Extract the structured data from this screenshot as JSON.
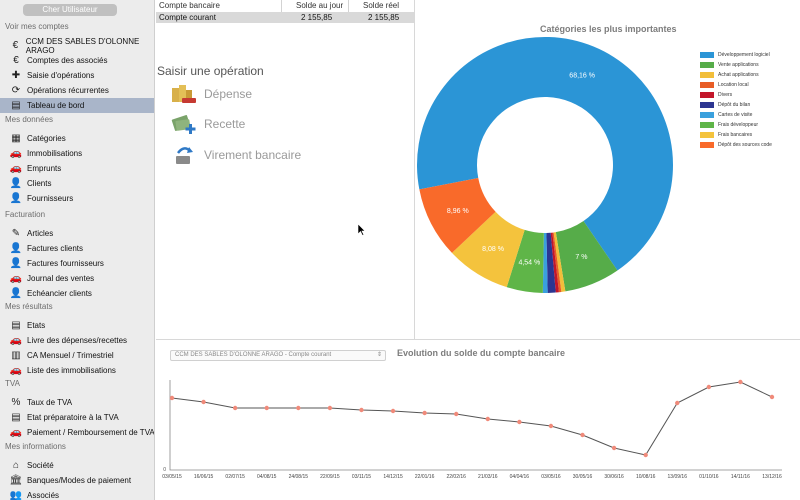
{
  "sidebar": {
    "user_button": "Cher Utilisateur",
    "sections": [
      {
        "title": "Voir mes comptes",
        "items": [
          {
            "label": "CCM DES SABLES D'OLONNE ARAGO",
            "icon": "euro-icon"
          },
          {
            "label": "Comptes des associés",
            "icon": "euro-icon"
          },
          {
            "label": "Saisie d'opérations",
            "icon": "plus-icon"
          },
          {
            "label": "Opérations récurrentes",
            "icon": "recurring-icon"
          },
          {
            "label": "Tableau de bord",
            "icon": "dashboard-icon",
            "active": true
          }
        ]
      },
      {
        "title": "Mes données",
        "items": [
          {
            "label": "Catégories",
            "icon": "categories-icon"
          },
          {
            "label": "Immobilisations",
            "icon": "car-icon"
          },
          {
            "label": "Emprunts",
            "icon": "car-icon"
          },
          {
            "label": "Clients",
            "icon": "person-icon"
          },
          {
            "label": "Fournisseurs",
            "icon": "person-icon"
          }
        ]
      },
      {
        "title": "Facturation",
        "items": [
          {
            "label": "Articles",
            "icon": "pencil-icon"
          },
          {
            "label": "Factures clients",
            "icon": "person-icon"
          },
          {
            "label": "Factures fournisseurs",
            "icon": "person-icon"
          },
          {
            "label": "Journal des ventes",
            "icon": "car-icon"
          },
          {
            "label": "Echéancier clients",
            "icon": "person-icon"
          }
        ]
      },
      {
        "title": "Mes résultats",
        "items": [
          {
            "label": "Etats",
            "icon": "report-icon"
          },
          {
            "label": "Livre des dépenses/recettes",
            "icon": "car-icon"
          },
          {
            "label": "CA Mensuel / Trimestriel",
            "icon": "chart-icon"
          },
          {
            "label": "Liste des immobilisations",
            "icon": "car-icon"
          }
        ]
      },
      {
        "title": "TVA",
        "items": [
          {
            "label": "Taux de TVA",
            "icon": "percent-icon"
          },
          {
            "label": "Etat préparatoire à la TVA",
            "icon": "report-icon"
          },
          {
            "label": "Paiement / Remboursement de TVA",
            "icon": "car-icon"
          }
        ]
      },
      {
        "title": "Mes informations",
        "items": [
          {
            "label": "Société",
            "icon": "building-icon"
          },
          {
            "label": "Banques/Modes de paiement",
            "icon": "bank-icon"
          },
          {
            "label": "Associés",
            "icon": "people-icon"
          }
        ]
      }
    ]
  },
  "accounts_table": {
    "headers": [
      "Compte bancaire",
      "Solde au jour",
      "Solde réel"
    ],
    "rows": [
      [
        "Compte courant",
        "2 155,85",
        "2 155,85"
      ]
    ]
  },
  "saisir": {
    "title": "Saisir une opération",
    "ops": [
      {
        "label": "Dépense",
        "icon": "money-minus-icon"
      },
      {
        "label": "Recette",
        "icon": "money-plus-icon"
      },
      {
        "label": "Virement bancaire",
        "icon": "transfer-icon"
      }
    ]
  },
  "donut": {
    "title": "Catégories les plus importantes",
    "legend": [
      {
        "label": "Développement logiciel",
        "color": "#2b95d6"
      },
      {
        "label": "Vente applications",
        "color": "#56ac49"
      },
      {
        "label": "Achat applications",
        "color": "#f2be3a"
      },
      {
        "label": "Location local",
        "color": "#e85d26"
      },
      {
        "label": "Divers",
        "color": "#c3162a"
      },
      {
        "label": "Dépôt du bilan",
        "color": "#2c3591"
      },
      {
        "label": "Cartes de visite",
        "color": "#3aa0dd"
      },
      {
        "label": "Frais développeur",
        "color": "#5fb548"
      },
      {
        "label": "Frais bancaires",
        "color": "#f4c33d"
      },
      {
        "label": "Dépôt des sources code",
        "color": "#f96a2a"
      }
    ]
  },
  "line": {
    "title": "Evolution du solde du compte bancaire",
    "select_value": "CCM DES SABLES D'OLONNE ARAGO - Compte courant",
    "y_zero_label": "0"
  },
  "chart_data": [
    {
      "type": "pie",
      "title": "Catégories les plus importantes",
      "categories": [
        "Développement logiciel",
        "Vente applications",
        "Achat applications",
        "Location local",
        "Divers",
        "Dépôt du bilan",
        "Cartes de visite",
        "Frais développeur",
        "Frais bancaires",
        "Dépôt des sources code"
      ],
      "values": [
        68.16,
        7.0,
        0.5,
        0.3,
        0.4,
        1.0,
        0.6,
        4.54,
        8.08,
        8.96
      ],
      "value_labels": [
        "68,16 %",
        "7 %",
        "",
        "",
        "",
        "",
        "",
        "4,54 %",
        "8,08 %",
        "8,96 %"
      ],
      "colors": [
        "#2b95d6",
        "#56ac49",
        "#f2be3a",
        "#e85d26",
        "#c3162a",
        "#2c3591",
        "#3aa0dd",
        "#5fb548",
        "#f4c33d",
        "#f96a2a"
      ],
      "legend": "right"
    },
    {
      "type": "line",
      "title": "Evolution du solde du compte bancaire",
      "x": [
        "03/05/15",
        "16/06/15",
        "02/07/15",
        "04/08/15",
        "24/08/15",
        "22/09/15",
        "03/11/15",
        "14/12/15",
        "22/01/16",
        "22/02/16",
        "21/03/16",
        "04/04/16",
        "03/05/16",
        "30/05/16",
        "30/06/16",
        "10/08/16",
        "13/09/16",
        "01/10/16",
        "14/11/16",
        "13/12/16"
      ],
      "y": [
        72,
        68,
        62,
        62,
        62,
        62,
        60,
        59,
        57,
        56,
        51,
        48,
        44,
        35,
        22,
        15,
        67,
        83,
        88,
        73
      ],
      "color": "#555555",
      "marker_color": "#f08a7a",
      "grid": false
    }
  ]
}
